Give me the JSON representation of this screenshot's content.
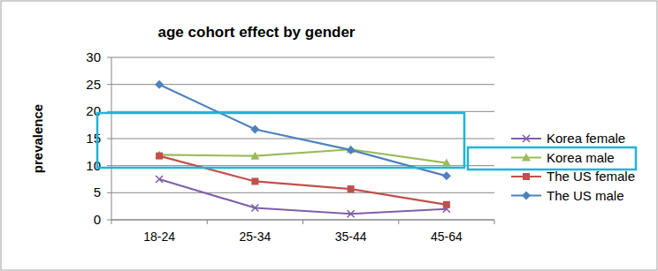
{
  "chart_data": {
    "type": "line",
    "title": "age cohort effect by gender",
    "y_label": "prevalence",
    "categories": [
      "18-24",
      "25-34",
      "35-44",
      "45-64"
    ],
    "series": [
      {
        "name": "Korea female",
        "color": "#7f5fa8",
        "marker": "x",
        "values": [
          7.5,
          2.2,
          1.1,
          2.0
        ]
      },
      {
        "name": "Korea male",
        "color": "#9bbb59",
        "marker": "triangle",
        "values": [
          12,
          11.8,
          13,
          10.5
        ]
      },
      {
        "name": "The US female",
        "color": "#c0504d",
        "marker": "square",
        "values": [
          11.8,
          7.1,
          5.7,
          2.8
        ]
      },
      {
        "name": "The US male",
        "color": "#4f81bd",
        "marker": "diamond",
        "values": [
          25,
          16.7,
          12.9,
          8.1
        ]
      }
    ],
    "ylim": [
      0,
      30
    ],
    "yticks": [
      0,
      5,
      10,
      15,
      20,
      25,
      30
    ],
    "grid": true,
    "legend": "right"
  }
}
